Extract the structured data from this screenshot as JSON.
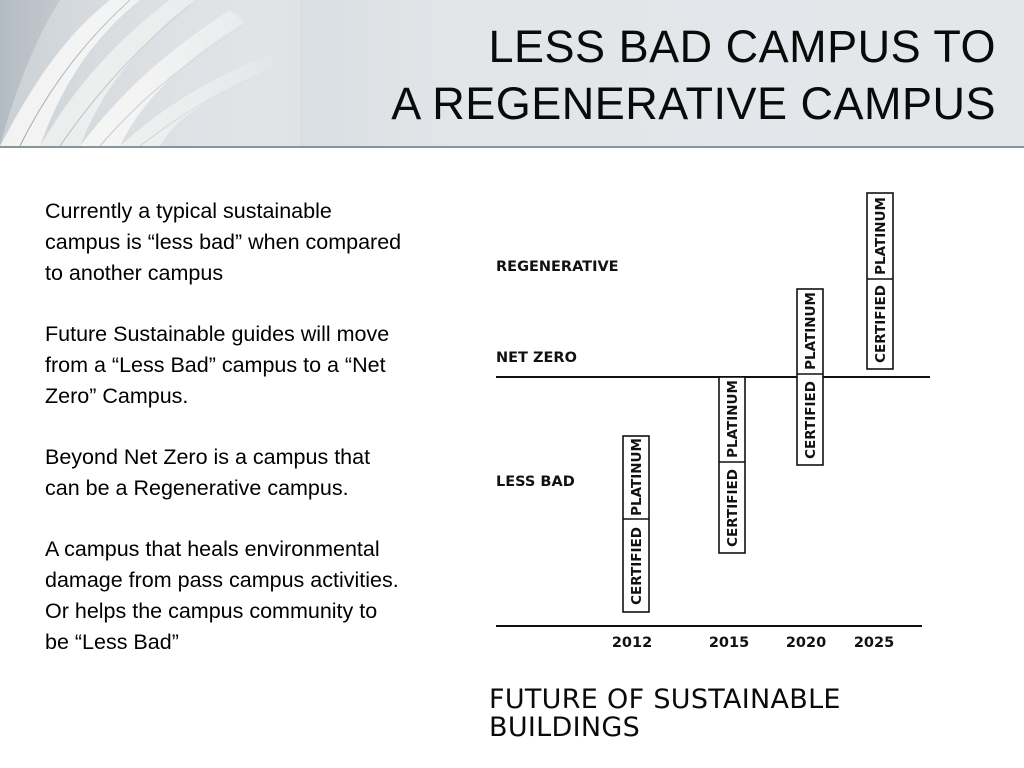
{
  "slide": {
    "title_line1": "LESS BAD CAMPUS TO",
    "title_line2": "A REGENERATIVE CAMPUS",
    "paragraphs": [
      "Currently a typical sustainable campus is “less bad” when compared to another campus",
      "Future Sustainable guides will move from a “Less Bad” campus to a “Net Zero” Campus.",
      "Beyond Net Zero is a campus that can be a Regenerative campus.",
      "A campus that heals environmental damage from pass campus activities. Or helps the campus community to be “Less Bad”"
    ]
  },
  "diagram": {
    "levels": {
      "regenerative": "REGENERATIVE",
      "net_zero": "NET ZERO",
      "less_bad": "LESS BAD"
    },
    "years": [
      "2012",
      "2015",
      "2020",
      "2025"
    ],
    "bar_labels": {
      "certified": "CERTIFIED",
      "platinum": "PLATINUM"
    },
    "caption_line1": "FUTURE OF SUSTAINABLE",
    "caption_line2": "BUILDINGS"
  }
}
